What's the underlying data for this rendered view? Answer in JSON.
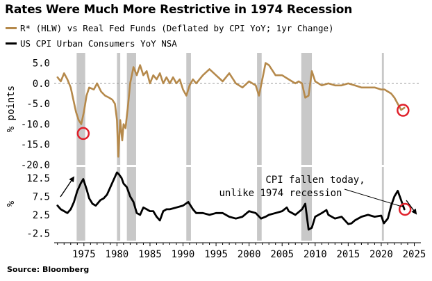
{
  "title": "Rates Were Much More Restrictive in 1974 Recession",
  "source": "Source: Bloomberg",
  "colors": {
    "rstar": "#b5894b",
    "cpi": "#000000",
    "recession": "#c8c8c8",
    "highlight": "#e0202a",
    "zero_line": "#999999"
  },
  "chart_data": [
    {
      "type": "line",
      "panel": "top",
      "title": "",
      "ylabel": "% points",
      "ylim": [
        -20,
        7.5
      ],
      "yticks": [
        5.0,
        0.0,
        -5.0,
        -10.0,
        -15.0,
        -20.0
      ],
      "ytick_labels": [
        "5.0",
        "0.0",
        "-5.0",
        "-10.0",
        "-15.0",
        "-20.0"
      ],
      "xlim": [
        1970.5,
        2026
      ],
      "zero_line": true,
      "series": [
        {
          "name": "R* (HLW) vs Real Fed Funds (Deflated by CPI YoY; 1yr Change)",
          "x": [
            1971.0,
            1971.5,
            1972.0,
            1972.5,
            1973.0,
            1973.4,
            1973.8,
            1974.2,
            1974.6,
            1975.0,
            1975.4,
            1975.8,
            1976.5,
            1977.0,
            1977.6,
            1978.2,
            1978.8,
            1979.3,
            1979.7,
            1980.0,
            1980.2,
            1980.5,
            1980.8,
            1981.0,
            1981.3,
            1981.7,
            1982.0,
            1982.5,
            1983.0,
            1983.5,
            1984.0,
            1984.5,
            1985.0,
            1985.5,
            1986.0,
            1986.5,
            1987.0,
            1987.5,
            1988.0,
            1988.5,
            1989.0,
            1989.5,
            1990.0,
            1990.5,
            1991.0,
            1991.5,
            1992.0,
            1993.0,
            1994.0,
            1995.0,
            1996.0,
            1997.0,
            1998.0,
            1999.0,
            2000.0,
            2001.0,
            2001.5,
            2002.0,
            2002.5,
            2003.0,
            2004.0,
            2005.0,
            2006.0,
            2007.0,
            2007.5,
            2008.0,
            2008.5,
            2009.0,
            2009.5,
            2010.0,
            2011.0,
            2012.0,
            2013.0,
            2014.0,
            2015.0,
            2016.0,
            2017.0,
            2018.0,
            2019.0,
            2020.0,
            2020.5,
            2021.0,
            2021.5,
            2022.0,
            2022.5,
            2023.0,
            2023.5
          ],
          "values": [
            1.5,
            0.5,
            2.5,
            1.0,
            -1.0,
            -4.0,
            -7.0,
            -9.0,
            -10.0,
            -7.0,
            -3.0,
            -1.0,
            -1.5,
            0.0,
            -2.0,
            -3.0,
            -3.5,
            -4.0,
            -5.0,
            -9.0,
            -18.0,
            -9.0,
            -14.0,
            -10.0,
            -11.0,
            -5.0,
            0.0,
            4.0,
            2.0,
            4.5,
            2.0,
            3.0,
            0.0,
            2.0,
            1.0,
            2.5,
            0.0,
            1.5,
            0.0,
            1.5,
            0.0,
            1.0,
            -1.5,
            -3.0,
            -0.5,
            1.0,
            0.0,
            2.0,
            3.5,
            2.0,
            0.5,
            2.5,
            0.0,
            -1.0,
            0.5,
            -0.5,
            -3.0,
            1.0,
            5.0,
            4.5,
            2.0,
            2.0,
            1.0,
            0.0,
            0.5,
            0.0,
            -3.5,
            -3.0,
            3.0,
            0.5,
            -0.5,
            0.0,
            -0.5,
            -0.5,
            0.0,
            -0.5,
            -1.0,
            -1.0,
            -1.0,
            -1.5,
            -1.5,
            -2.0,
            -2.5,
            -3.5,
            -5.0,
            -6.5,
            -6.0
          ]
        }
      ],
      "recessions": [
        [
          1973.9,
          1975.2
        ],
        [
          1980.0,
          1980.5
        ],
        [
          1981.5,
          1982.9
        ],
        [
          1990.5,
          1991.2
        ],
        [
          2001.2,
          2001.9
        ],
        [
          2007.9,
          2009.5
        ],
        [
          2020.1,
          2020.4
        ]
      ],
      "highlights": [
        {
          "x": 1974.9,
          "y": -12.3
        },
        {
          "x": 2023.3,
          "y": -6.6
        }
      ]
    },
    {
      "type": "line",
      "panel": "bottom",
      "title": "",
      "ylabel": "%",
      "ylim": [
        -4.5,
        15.5
      ],
      "yticks": [
        12.5,
        7.5,
        2.5,
        -2.5
      ],
      "ytick_labels": [
        "12.5",
        "7.5",
        "2.5",
        "-2.5"
      ],
      "xlim": [
        1970.5,
        2026
      ],
      "xticks": [
        1975,
        1980,
        1985,
        1990,
        1995,
        2000,
        2005,
        2010,
        2015,
        2020,
        2025
      ],
      "xtick_labels": [
        "1975",
        "1980",
        "1985",
        "1990",
        "1995",
        "2000",
        "2005",
        "2010",
        "2015",
        "2020",
        "2025"
      ],
      "annotation": {
        "lines": [
          "CPI fallen today,",
          "unlike 1974 recession"
        ]
      },
      "series": [
        {
          "name": "US CPI Urban Consumers YoY NSA",
          "x": [
            1971.0,
            1971.5,
            1972.0,
            1972.5,
            1973.0,
            1973.5,
            1974.0,
            1974.5,
            1974.9,
            1975.4,
            1975.8,
            1976.3,
            1976.8,
            1977.5,
            1978.0,
            1978.5,
            1979.0,
            1979.5,
            1980.0,
            1980.3,
            1980.7,
            1981.0,
            1981.5,
            1982.0,
            1982.5,
            1983.0,
            1983.5,
            1984.0,
            1984.5,
            1985.0,
            1985.5,
            1986.0,
            1986.5,
            1987.0,
            1987.5,
            1988.0,
            1989.0,
            1990.0,
            1990.8,
            1991.5,
            1992.0,
            1993.0,
            1994.0,
            1995.0,
            1996.0,
            1997.0,
            1998.0,
            1999.0,
            2000.0,
            2001.0,
            2001.8,
            2002.5,
            2003.0,
            2004.0,
            2005.0,
            2005.7,
            2006.0,
            2007.0,
            2008.0,
            2008.5,
            2009.0,
            2009.5,
            2010.0,
            2011.0,
            2011.7,
            2012.0,
            2013.0,
            2014.0,
            2015.0,
            2015.5,
            2016.0,
            2017.0,
            2018.0,
            2019.0,
            2020.0,
            2020.4,
            2021.0,
            2021.5,
            2022.0,
            2022.5,
            2023.0,
            2023.5
          ],
          "values": [
            5.0,
            4.0,
            3.5,
            3.0,
            4.0,
            6.0,
            9.0,
            11.0,
            12.2,
            9.5,
            7.0,
            5.5,
            5.0,
            6.5,
            7.0,
            8.0,
            10.0,
            12.0,
            14.0,
            13.5,
            12.5,
            11.0,
            10.0,
            7.5,
            6.0,
            3.0,
            2.5,
            4.5,
            4.0,
            3.5,
            3.5,
            2.0,
            1.0,
            3.5,
            4.0,
            4.0,
            4.5,
            5.0,
            6.0,
            4.0,
            3.0,
            3.0,
            2.5,
            3.0,
            3.0,
            2.0,
            1.5,
            2.0,
            3.5,
            3.0,
            1.5,
            2.0,
            2.5,
            3.0,
            3.5,
            4.5,
            3.5,
            2.5,
            4.0,
            5.5,
            -1.5,
            -1.0,
            2.0,
            3.0,
            3.8,
            2.5,
            1.5,
            2.0,
            0.0,
            0.2,
            1.0,
            2.0,
            2.5,
            2.0,
            2.3,
            0.2,
            1.5,
            5.0,
            7.5,
            9.0,
            6.5,
            4.0
          ]
        }
      ],
      "recessions": [
        [
          1973.9,
          1975.2
        ],
        [
          1980.0,
          1980.5
        ],
        [
          1981.5,
          1982.9
        ],
        [
          1990.5,
          1991.2
        ],
        [
          2001.2,
          2001.9
        ],
        [
          2007.9,
          2009.5
        ],
        [
          2020.1,
          2020.4
        ]
      ],
      "highlights": [
        {
          "x": 2023.6,
          "y": 4.0
        }
      ]
    }
  ]
}
